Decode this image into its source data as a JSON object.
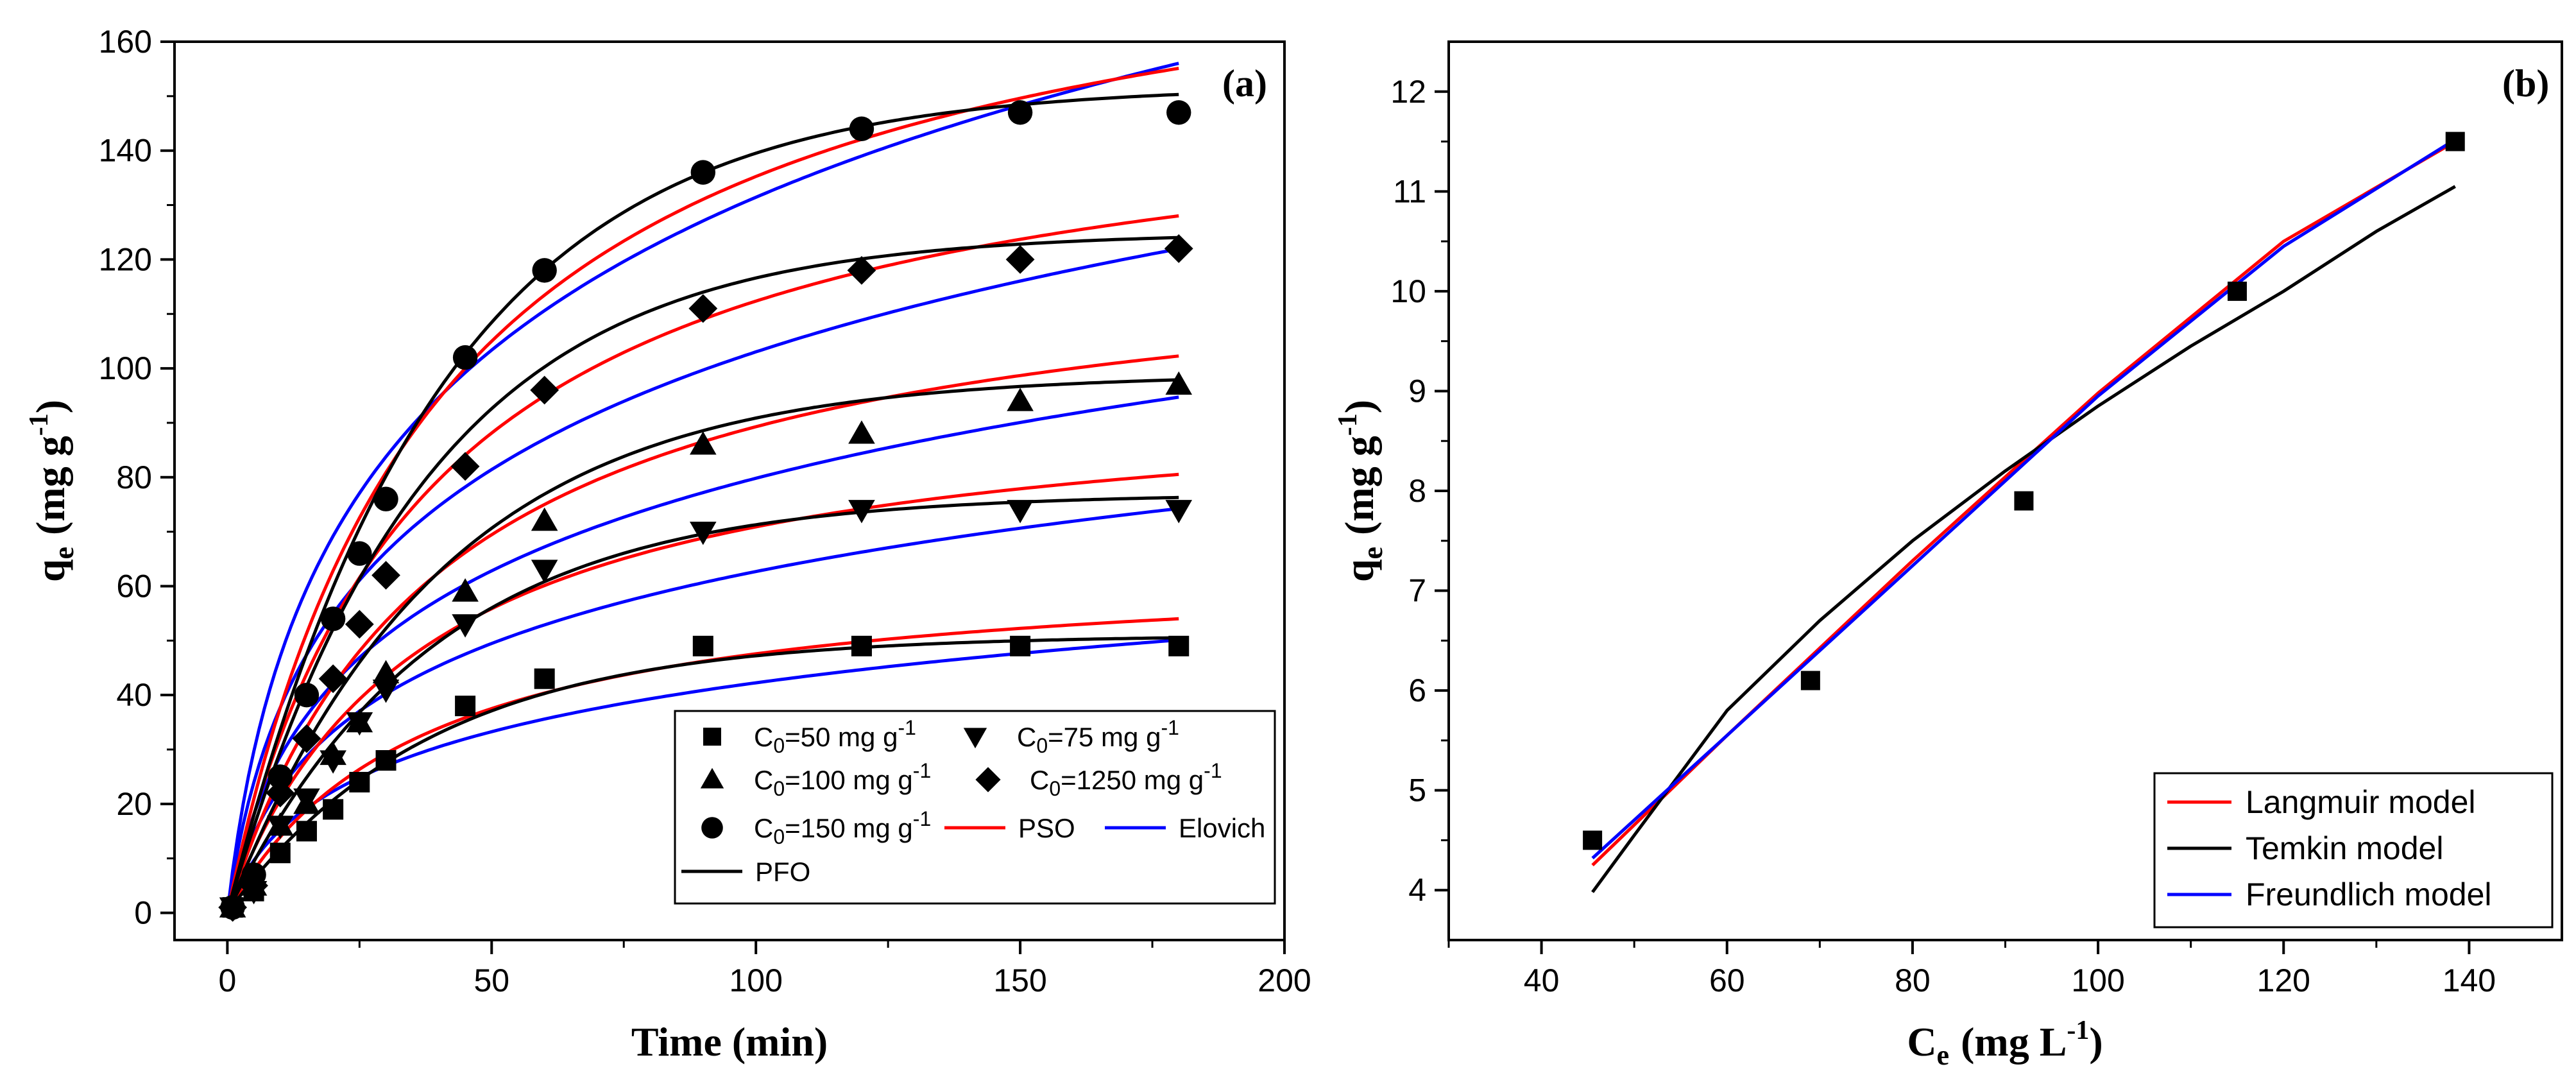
{
  "chart_data": [
    {
      "type": "scatter",
      "panel_label": "(a)",
      "xlabel": "Time (min)",
      "ylabel": {
        "main": "q",
        "sub": "e",
        "unit": "(mg g",
        "sup": "-1",
        "close": ")"
      },
      "xlim": [
        -10,
        200
      ],
      "ylim": [
        -5,
        160
      ],
      "x_ticks": [
        0,
        50,
        100,
        150,
        200
      ],
      "y_ticks": [
        0,
        20,
        40,
        60,
        80,
        100,
        120,
        140,
        160
      ],
      "x": [
        1,
        5,
        10,
        15,
        20,
        25,
        30,
        45,
        60,
        90,
        120,
        150,
        180
      ],
      "series": [
        {
          "name": "C0=50 mg g-1",
          "label_prefix": "C",
          "label_sub": "0",
          "label_mid": "=50 mg g",
          "label_sup": "-1",
          "marker": "square",
          "values": [
            1,
            4,
            11,
            15,
            19,
            24,
            28,
            38,
            43,
            49,
            49,
            49,
            49
          ],
          "fits": {
            "PFO": [
              51.0,
              0.026
            ],
            "PSO": [
              65.0,
              0.00042
            ],
            "Elovich": [
              2.77,
              0.072
            ]
          }
        },
        {
          "name": "C0=75 mg g-1",
          "label_prefix": "C",
          "label_sub": "0",
          "label_mid": "=75 mg g",
          "label_sup": "-1",
          "marker": "triangle-down",
          "values": [
            1,
            4,
            16,
            21,
            28,
            35,
            41,
            53,
            63,
            70,
            74,
            74,
            74
          ],
          "fits": {
            "PFO": [
              77.0,
              0.026
            ],
            "PSO": [
              97.0,
              0.00028
            ],
            "Elovich": [
              4.2,
              0.049
            ]
          }
        },
        {
          "name": "C0=100 mg g-1",
          "label_prefix": "C",
          "label_sub": "0",
          "label_mid": "=100 mg g",
          "label_sup": "-1",
          "marker": "triangle-up",
          "values": [
            1,
            5,
            16,
            20,
            29,
            35,
            44,
            59,
            72,
            86,
            88,
            94,
            97
          ],
          "fits": {
            "PFO": [
              99.0,
              0.025
            ],
            "PSO": [
              125.0,
              0.0002
            ],
            "Elovich": [
              5.2,
              0.038
            ]
          }
        },
        {
          "name": "C0=1250 mg g-1",
          "label_prefix": "C",
          "label_sub": "0",
          "label_mid": "=1250 mg g",
          "label_sup": "-1",
          "marker": "diamond",
          "values": [
            1,
            5,
            22,
            32,
            43,
            53,
            62,
            82,
            96,
            111,
            118,
            120,
            122
          ],
          "fits": {
            "PFO": [
              125.0,
              0.027
            ],
            "PSO": [
              155.0,
              0.00017
            ],
            "Elovich": [
              7.0,
              0.03
            ]
          }
        },
        {
          "name": "C0=150 mg g-1",
          "label_prefix": "C",
          "label_sub": "0",
          "label_mid": "=150 mg g",
          "label_sup": "-1",
          "marker": "circle",
          "values": [
            1,
            7,
            25,
            40,
            54,
            66,
            76,
            102,
            118,
            136,
            144,
            147,
            147
          ],
          "fits": {
            "PFO": [
              152.0,
              0.025
            ],
            "PSO": [
              190.0,
              0.00013
            ],
            "Elovich": [
              8.5,
              0.023
            ]
          }
        }
      ],
      "fit_models": [
        {
          "name": "PFO",
          "color": "#000000"
        },
        {
          "name": "PSO",
          "color": "#ff0000"
        },
        {
          "name": "Elovich",
          "color": "#0000ff"
        }
      ],
      "fit_x_range": [
        0,
        180
      ],
      "legend": {
        "placement": "bottom-right"
      }
    },
    {
      "type": "scatter",
      "panel_label": "(b)",
      "xlabel": {
        "main": "C",
        "sub": "e",
        "unit": "(mg L",
        "sup": "-1",
        "close": ")"
      },
      "ylabel": {
        "main": "q",
        "sub": "e",
        "unit": "(mg g",
        "sup": "-1",
        "close": ")"
      },
      "xlim": [
        30,
        150
      ],
      "ylim": [
        3.5,
        12.5
      ],
      "x_ticks": [
        40,
        60,
        80,
        100,
        120,
        140
      ],
      "y_ticks": [
        4,
        5,
        6,
        7,
        8,
        9,
        10,
        11,
        12
      ],
      "points": {
        "x": [
          45.5,
          69,
          92,
          115,
          138.5
        ],
        "y": [
          4.5,
          6.1,
          7.9,
          10.0,
          11.5
        ]
      },
      "fits": [
        {
          "name": "Langmuir model",
          "color": "#ff0000",
          "x_range": [
            45.5,
            138.5
          ],
          "x": [
            45.5,
            60,
            80,
            100,
            120,
            138.5
          ],
          "y": [
            4.25,
            5.55,
            7.3,
            8.98,
            10.5,
            11.5
          ]
        },
        {
          "name": "Temkin model",
          "color": "#000000",
          "x_range": [
            45.5,
            138.5
          ],
          "x": [
            45.5,
            50,
            60,
            70,
            80,
            90,
            100,
            110,
            120,
            130,
            138.5
          ],
          "y": [
            3.98,
            4.55,
            5.8,
            6.7,
            7.5,
            8.2,
            8.85,
            9.45,
            10.0,
            10.6,
            11.05
          ]
        },
        {
          "name": "Freundlich model",
          "color": "#0000ff",
          "x_range": [
            45.5,
            138.5
          ],
          "x": [
            45.5,
            60,
            80,
            100,
            120,
            138.5
          ],
          "y": [
            4.32,
            5.55,
            7.25,
            8.95,
            10.45,
            11.52
          ]
        }
      ],
      "legend": {
        "placement": "bottom-right"
      }
    }
  ]
}
